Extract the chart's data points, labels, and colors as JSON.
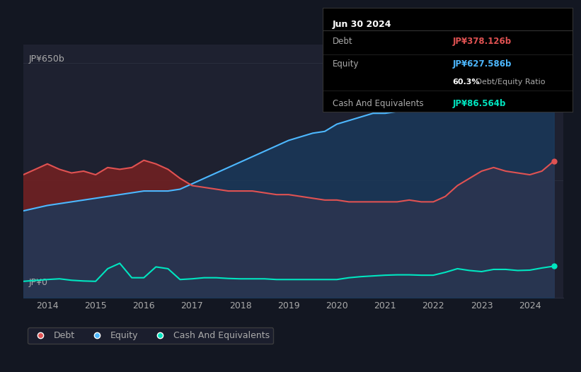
{
  "bg_color": "#131722",
  "plot_bg_color": "#1e2130",
  "grid_color": "#2a2e3d",
  "ylabel_top": "JP¥650b",
  "ylabel_bottom": "JP¥0",
  "x_ticks": [
    2014,
    2015,
    2016,
    2017,
    2018,
    2019,
    2020,
    2021,
    2022,
    2023,
    2024
  ],
  "debt_color": "#e05252",
  "equity_color": "#4db8ff",
  "cash_color": "#00e5c0",
  "debt_fill_color": "#7a2020",
  "equity_fill_color": "#1a3a5c",
  "cash_fill_color": "#0a4040",
  "tooltip_bg": "#000000",
  "tooltip_title": "Jun 30 2024",
  "tooltip_debt_label": "Debt",
  "tooltip_debt_value": "JP¥378.126b",
  "tooltip_equity_label": "Equity",
  "tooltip_equity_value": "JP¥627.586b",
  "tooltip_ratio_bold": "60.3%",
  "tooltip_ratio_rest": " Debt/Equity Ratio",
  "tooltip_cash_label": "Cash And Equivalents",
  "tooltip_cash_value": "JP¥86.564b",
  "legend_labels": [
    "Debt",
    "Equity",
    "Cash And Equivalents"
  ],
  "ylim": [
    0,
    700
  ],
  "xlim": [
    2013.5,
    2024.7
  ],
  "years": [
    2013.5,
    2014.0,
    2014.25,
    2014.5,
    2014.75,
    2015.0,
    2015.25,
    2015.5,
    2015.75,
    2016.0,
    2016.25,
    2016.5,
    2016.75,
    2017.0,
    2017.25,
    2017.5,
    2017.75,
    2018.0,
    2018.25,
    2018.5,
    2018.75,
    2019.0,
    2019.25,
    2019.5,
    2019.75,
    2020.0,
    2020.25,
    2020.5,
    2020.75,
    2021.0,
    2021.25,
    2021.5,
    2021.75,
    2022.0,
    2022.25,
    2022.5,
    2022.75,
    2023.0,
    2023.25,
    2023.5,
    2023.75,
    2024.0,
    2024.25,
    2024.5
  ],
  "debt": [
    340,
    370,
    355,
    345,
    350,
    340,
    360,
    355,
    360,
    380,
    370,
    355,
    330,
    310,
    305,
    300,
    295,
    295,
    295,
    290,
    285,
    285,
    280,
    275,
    270,
    270,
    265,
    265,
    265,
    265,
    265,
    270,
    265,
    265,
    280,
    310,
    330,
    350,
    360,
    350,
    345,
    340,
    350,
    378
  ],
  "equity": [
    240,
    255,
    260,
    265,
    270,
    275,
    280,
    285,
    290,
    295,
    295,
    295,
    300,
    315,
    330,
    345,
    360,
    375,
    390,
    405,
    420,
    435,
    445,
    455,
    460,
    480,
    490,
    500,
    510,
    510,
    515,
    520,
    525,
    530,
    545,
    560,
    575,
    580,
    570,
    580,
    590,
    595,
    610,
    628
  ],
  "cash": [
    45,
    50,
    52,
    48,
    46,
    45,
    80,
    95,
    55,
    55,
    85,
    80,
    50,
    52,
    55,
    55,
    53,
    52,
    52,
    52,
    50,
    50,
    50,
    50,
    50,
    50,
    55,
    58,
    60,
    62,
    63,
    63,
    62,
    62,
    70,
    80,
    75,
    72,
    78,
    78,
    75,
    76,
    82,
    87
  ]
}
